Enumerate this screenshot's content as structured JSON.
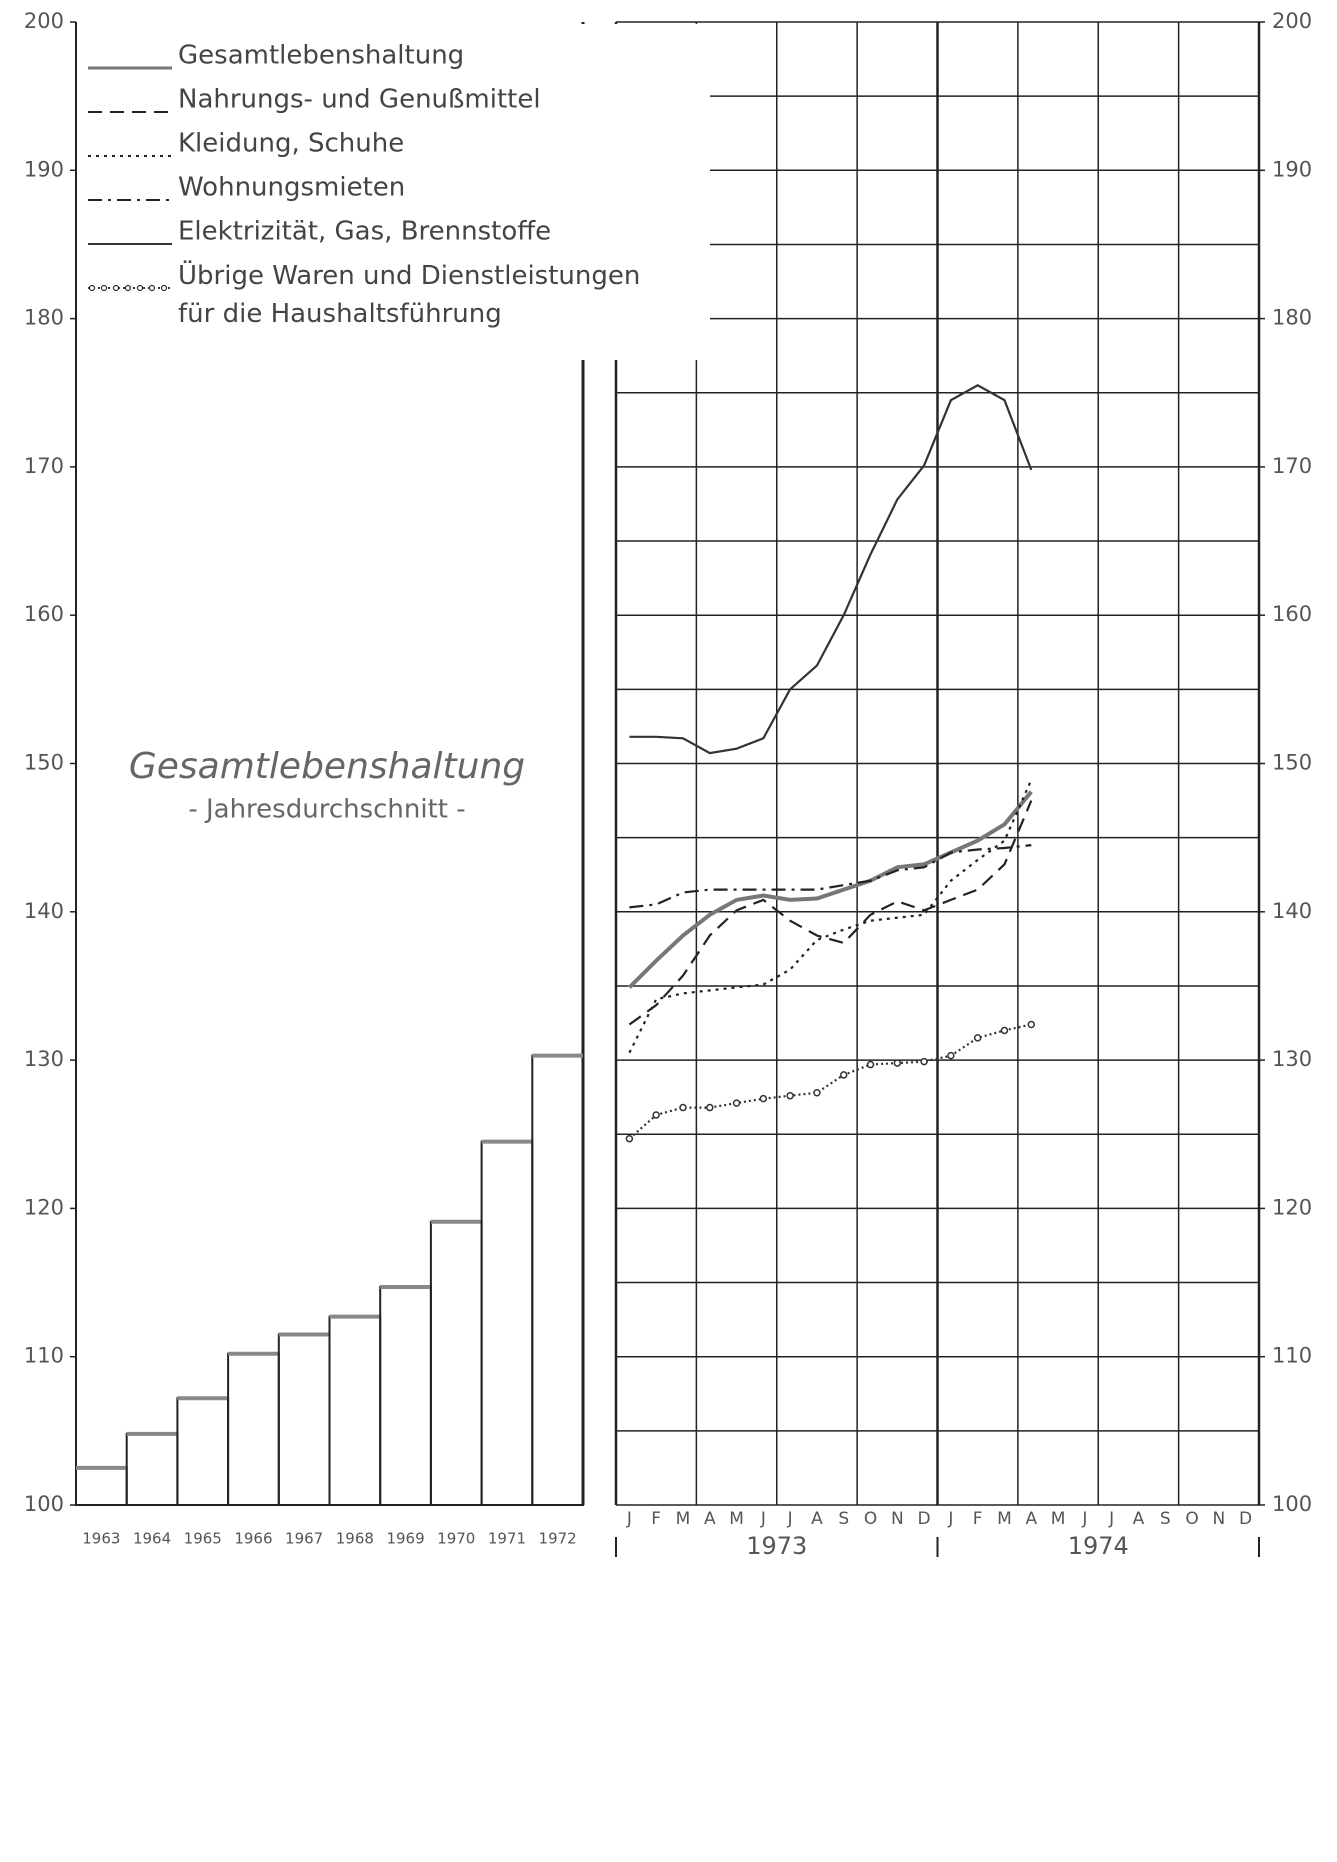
{
  "chart_data": [
    {
      "type": "bar",
      "title": "Gesamtlebenshaltung",
      "subtitle": "- Jahresdurchschnitt -",
      "categories": [
        "1963",
        "1964",
        "1965",
        "1966",
        "1967",
        "1968",
        "1969",
        "1970",
        "1971",
        "1972"
      ],
      "values": [
        102.5,
        104.8,
        107.2,
        110.2,
        111.5,
        112.7,
        114.7,
        119.1,
        124.5,
        130.3
      ],
      "color": "#222222",
      "ylim": [
        100,
        200
      ],
      "yticks": [
        100,
        110,
        120,
        130,
        140,
        150,
        160,
        170,
        180,
        190,
        200
      ]
    },
    {
      "type": "line",
      "categories": [
        "J",
        "F",
        "M",
        "A",
        "M",
        "J",
        "J",
        "A",
        "S",
        "O",
        "N",
        "D",
        "J",
        "F",
        "M",
        "A",
        "M",
        "J",
        "J",
        "A",
        "S",
        "O",
        "N",
        "D"
      ],
      "year_labels": [
        "1973",
        "1974"
      ],
      "ylim": [
        100,
        200
      ],
      "yticks": [
        100,
        110,
        120,
        130,
        140,
        150,
        160,
        170,
        180,
        190,
        200
      ],
      "grid": true,
      "grid_lines": [
        100,
        105,
        110,
        115,
        120,
        125,
        130,
        135,
        140,
        145,
        150,
        155,
        160,
        165,
        170,
        175,
        180,
        185,
        190,
        195,
        200
      ],
      "series": [
        {
          "name": "Gesamtlebenshaltung",
          "color": "#777777",
          "style": "solid",
          "values": [
            134.9,
            136.7,
            138.4,
            139.8,
            140.8,
            141.1,
            140.8,
            140.9,
            141.5,
            142.1,
            143.0,
            143.2,
            144.0,
            144.8,
            145.9,
            148.1,
            null,
            null,
            null,
            null,
            null,
            null,
            null,
            null
          ]
        },
        {
          "name": "Nahrungs- und Genußmittel",
          "color": "#222222",
          "style": "dashed",
          "values": [
            132.4,
            133.7,
            135.7,
            138.4,
            140.1,
            140.8,
            139.4,
            138.4,
            137.9,
            139.8,
            140.7,
            140.1,
            140.8,
            141.5,
            143.2,
            147.5,
            null,
            null,
            null,
            null,
            null,
            null,
            null,
            null
          ]
        },
        {
          "name": "Kleidung, Schuhe",
          "color": "#222222",
          "style": "dotted",
          "values": [
            130.5,
            134.1,
            134.5,
            134.7,
            134.9,
            135.1,
            136.1,
            138.1,
            138.8,
            139.4,
            139.6,
            139.8,
            142.1,
            143.5,
            144.8,
            148.9,
            null,
            null,
            null,
            null,
            null,
            null,
            null,
            null
          ]
        },
        {
          "name": "Wohnungsmieten",
          "color": "#222222",
          "style": "dashdot",
          "values": [
            140.3,
            140.5,
            141.3,
            141.5,
            141.5,
            141.5,
            141.5,
            141.5,
            141.8,
            142.1,
            142.8,
            143.0,
            144.0,
            144.2,
            144.3,
            144.5,
            null,
            null,
            null,
            null,
            null,
            null,
            null,
            null
          ]
        },
        {
          "name": "Elektrizität, Gas, Brennstoffe",
          "color": "#333333",
          "style": "solid",
          "values": [
            151.8,
            151.8,
            151.7,
            150.7,
            151.0,
            151.7,
            155.0,
            156.6,
            160.0,
            164.1,
            167.8,
            170.1,
            174.5,
            175.5,
            174.5,
            169.8,
            null,
            null,
            null,
            null,
            null,
            null,
            null,
            null
          ]
        },
        {
          "name": "Übrige Waren und Dienstleistungen für die Haushaltsführung",
          "color": "#333333",
          "style": "beaded",
          "values": [
            124.7,
            126.3,
            126.8,
            126.8,
            127.1,
            127.4,
            127.6,
            127.8,
            129.0,
            129.7,
            129.8,
            129.9,
            130.3,
            131.5,
            132.0,
            132.4,
            null,
            null,
            null,
            null,
            null,
            null,
            null,
            null
          ]
        }
      ]
    }
  ]
}
